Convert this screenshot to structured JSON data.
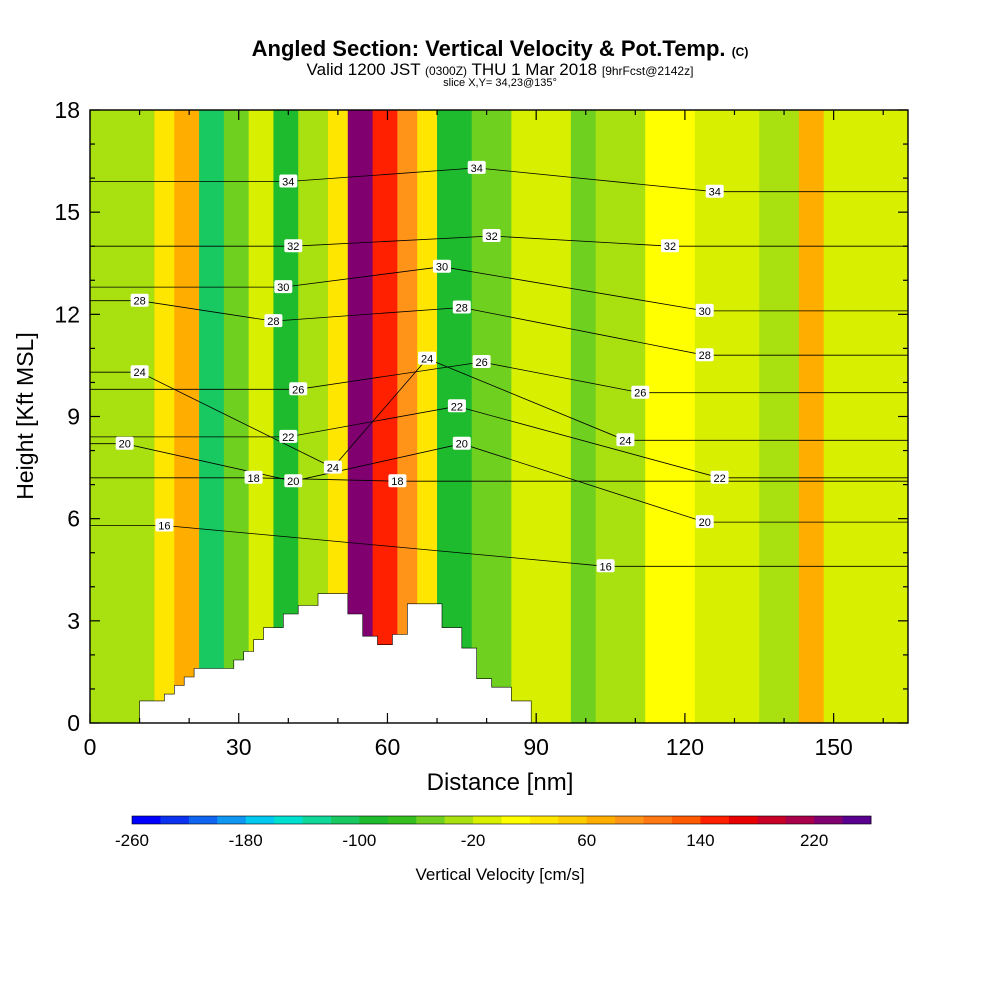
{
  "chart_data": {
    "type": "heatmap",
    "title": "Angled Section: Vertical Velocity & Pot.Temp.",
    "title_suffix": "(C)",
    "subtitle_main": "Valid 1200 JST",
    "subtitle_z": "(0300Z)",
    "subtitle_date": "THU 1 Mar 2018",
    "subtitle_fcst": "[9hrFcst@2142z]",
    "slice_label": "slice X,Y= 34,23@135°",
    "xlabel": "Distance [nm]",
    "ylabel": "Height [Kft MSL]",
    "xlim": [
      0,
      165
    ],
    "ylim": [
      0,
      18
    ],
    "x_ticks": [
      0,
      30,
      60,
      90,
      120,
      150
    ],
    "y_ticks": [
      0,
      3,
      6,
      9,
      12,
      15,
      18
    ],
    "colorbar": {
      "label": "Vertical Velocity [cm/s]",
      "min": -260,
      "max": 260,
      "tick_values": [
        -260,
        -180,
        -100,
        -20,
        60,
        140,
        220
      ],
      "colors": [
        "#0000ff",
        "#0a32f0",
        "#0f64f0",
        "#0f96f0",
        "#00c8f0",
        "#00e0d0",
        "#10d898",
        "#18c860",
        "#1ebb2e",
        "#35c020",
        "#70d020",
        "#a8e010",
        "#d8f000",
        "#ffff00",
        "#ffe600",
        "#ffcc00",
        "#ffae00",
        "#ff9419",
        "#ff7814",
        "#ff5a00",
        "#ff2000",
        "#e80000",
        "#c80028",
        "#a8004a",
        "#800070",
        "#5a0090"
      ]
    },
    "vertical_velocity_bands": [
      {
        "x": [
          0,
          13
        ],
        "value": -30
      },
      {
        "x": [
          13,
          17
        ],
        "value": 20
      },
      {
        "x": [
          17,
          22
        ],
        "value": 70
      },
      {
        "x": [
          22,
          27
        ],
        "value": -120
      },
      {
        "x": [
          27,
          32
        ],
        "value": -60
      },
      {
        "x": [
          32,
          37
        ],
        "value": -20
      },
      {
        "x": [
          37,
          42
        ],
        "value": -90
      },
      {
        "x": [
          42,
          48
        ],
        "value": -40
      },
      {
        "x": [
          48,
          52
        ],
        "value": 30
      },
      {
        "x": [
          52,
          57
        ],
        "value": 230
      },
      {
        "x": [
          57,
          62
        ],
        "value": 140
      },
      {
        "x": [
          62,
          66
        ],
        "value": 90
      },
      {
        "x": [
          66,
          70
        ],
        "value": 30
      },
      {
        "x": [
          70,
          77
        ],
        "value": -90
      },
      {
        "x": [
          77,
          85
        ],
        "value": -60
      },
      {
        "x": [
          85,
          97
        ],
        "value": -20
      },
      {
        "x": [
          97,
          102
        ],
        "value": -60
      },
      {
        "x": [
          102,
          112
        ],
        "value": -30
      },
      {
        "x": [
          112,
          122
        ],
        "value": 10
      },
      {
        "x": [
          122,
          135
        ],
        "value": -20
      },
      {
        "x": [
          135,
          143
        ],
        "value": -30
      },
      {
        "x": [
          143,
          148
        ],
        "value": 60
      },
      {
        "x": [
          148,
          165
        ],
        "value": -20
      }
    ],
    "theta_contour_labels": [
      {
        "value": "34",
        "x": 40,
        "y": 15.9
      },
      {
        "value": "34",
        "x": 78,
        "y": 16.3
      },
      {
        "value": "34",
        "x": 126,
        "y": 15.6
      },
      {
        "value": "32",
        "x": 41,
        "y": 14.0
      },
      {
        "value": "32",
        "x": 81,
        "y": 14.3
      },
      {
        "value": "32",
        "x": 117,
        "y": 14.0
      },
      {
        "value": "30",
        "x": 39,
        "y": 12.8
      },
      {
        "value": "30",
        "x": 71,
        "y": 13.4
      },
      {
        "value": "30",
        "x": 124,
        "y": 12.1
      },
      {
        "value": "28",
        "x": 10,
        "y": 12.4
      },
      {
        "value": "28",
        "x": 37,
        "y": 11.8
      },
      {
        "value": "28",
        "x": 75,
        "y": 12.2
      },
      {
        "value": "28",
        "x": 124,
        "y": 10.8
      },
      {
        "value": "26",
        "x": 42,
        "y": 9.8
      },
      {
        "value": "26",
        "x": 79,
        "y": 10.6
      },
      {
        "value": "26",
        "x": 111,
        "y": 9.7
      },
      {
        "value": "24",
        "x": 10,
        "y": 10.3
      },
      {
        "value": "24",
        "x": 68,
        "y": 10.7
      },
      {
        "value": "24",
        "x": 49,
        "y": 7.5
      },
      {
        "value": "24",
        "x": 108,
        "y": 8.3
      },
      {
        "value": "22",
        "x": 40,
        "y": 8.4
      },
      {
        "value": "22",
        "x": 74,
        "y": 9.3
      },
      {
        "value": "22",
        "x": 127,
        "y": 7.2
      },
      {
        "value": "20",
        "x": 7,
        "y": 8.2
      },
      {
        "value": "20",
        "x": 41,
        "y": 7.1
      },
      {
        "value": "20",
        "x": 75,
        "y": 8.2
      },
      {
        "value": "20",
        "x": 124,
        "y": 5.9
      },
      {
        "value": "18",
        "x": 33,
        "y": 7.2
      },
      {
        "value": "18",
        "x": 62,
        "y": 7.1
      },
      {
        "value": "16",
        "x": 15,
        "y": 5.8
      },
      {
        "value": "16",
        "x": 104,
        "y": 4.6
      }
    ],
    "terrain_profile": [
      [
        0,
        0
      ],
      [
        10,
        0
      ],
      [
        10,
        0.65
      ],
      [
        15,
        0.65
      ],
      [
        15,
        0.85
      ],
      [
        17,
        0.85
      ],
      [
        17,
        1.1
      ],
      [
        19,
        1.1
      ],
      [
        19,
        1.35
      ],
      [
        21,
        1.35
      ],
      [
        21,
        1.6
      ],
      [
        29,
        1.6
      ],
      [
        29,
        1.85
      ],
      [
        31,
        1.85
      ],
      [
        31,
        2.1
      ],
      [
        33,
        2.1
      ],
      [
        33,
        2.45
      ],
      [
        35,
        2.45
      ],
      [
        35,
        2.8
      ],
      [
        39,
        2.8
      ],
      [
        39,
        3.2
      ],
      [
        42,
        3.2
      ],
      [
        42,
        3.45
      ],
      [
        46,
        3.45
      ],
      [
        46,
        3.8
      ],
      [
        52,
        3.8
      ],
      [
        52,
        3.2
      ],
      [
        55,
        3.2
      ],
      [
        55,
        2.55
      ],
      [
        58,
        2.55
      ],
      [
        58,
        2.3
      ],
      [
        61,
        2.3
      ],
      [
        61,
        2.6
      ],
      [
        64,
        2.6
      ],
      [
        64,
        3.5
      ],
      [
        71,
        3.5
      ],
      [
        71,
        2.8
      ],
      [
        75,
        2.8
      ],
      [
        75,
        2.2
      ],
      [
        78,
        2.2
      ],
      [
        78,
        1.3
      ],
      [
        81,
        1.3
      ],
      [
        81,
        1.05
      ],
      [
        85,
        1.05
      ],
      [
        85,
        0.65
      ],
      [
        89,
        0.65
      ],
      [
        89,
        0
      ],
      [
        165,
        0
      ]
    ]
  }
}
